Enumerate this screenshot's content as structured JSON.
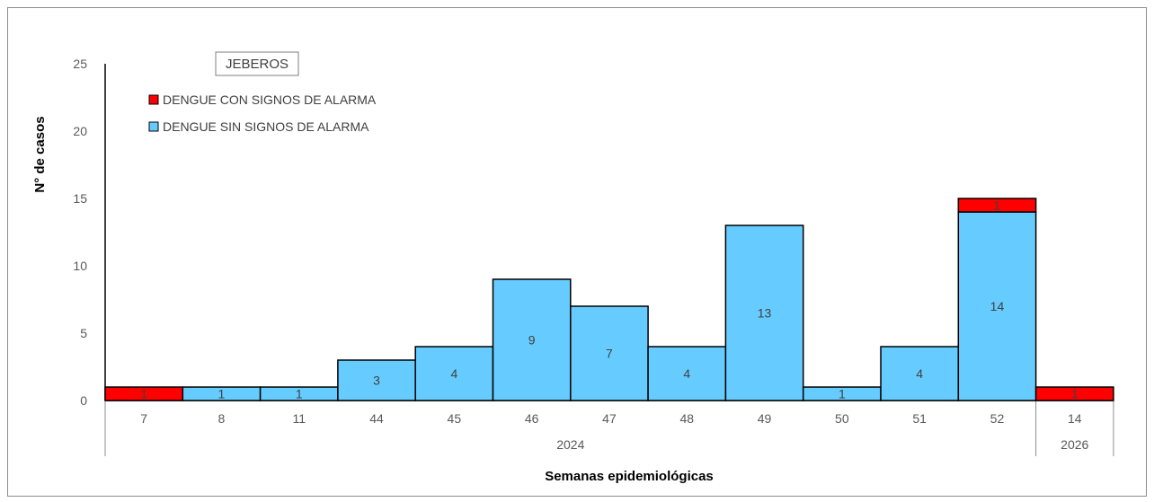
{
  "chart_data": {
    "type": "bar",
    "stacked": true,
    "title": "JEBEROS",
    "xlabel": "Semanas epidemiológicas",
    "ylabel": "N° de casos",
    "ylim": [
      0,
      25
    ],
    "yticks": [
      "0",
      "5",
      "10",
      "15",
      "20",
      "25"
    ],
    "grid": false,
    "legend_position": "top-left",
    "categories": [
      "7",
      "8",
      "11",
      "44",
      "45",
      "46",
      "47",
      "48",
      "49",
      "50",
      "51",
      "52",
      "14"
    ],
    "groups": [
      {
        "label": "2024",
        "count": 12
      },
      {
        "label": "2026",
        "count": 1
      }
    ],
    "series": [
      {
        "name": "DENGUE SIN SIGNOS DE ALARMA",
        "color": "#66ccff",
        "values": [
          0,
          1,
          1,
          3,
          4,
          9,
          7,
          4,
          13,
          1,
          4,
          14,
          0
        ]
      },
      {
        "name": "DENGUE CON SIGNOS DE ALARMA",
        "color": "#ff0000",
        "values": [
          1,
          0,
          0,
          0,
          0,
          0,
          0,
          0,
          0,
          0,
          0,
          1,
          1
        ]
      }
    ]
  }
}
